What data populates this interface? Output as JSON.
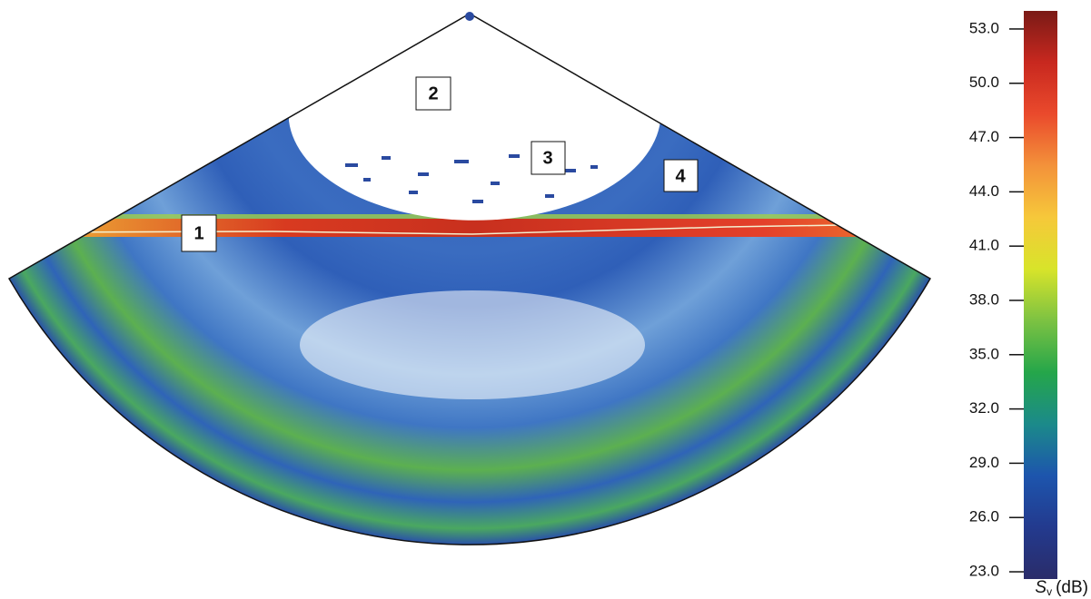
{
  "chart_data": {
    "type": "colorbar",
    "annotations": [
      "1",
      "2",
      "3",
      "4"
    ],
    "colorbar_label": {
      "symbol": "S",
      "subscript": "v",
      "unit": "(dB)"
    },
    "ylim": [
      22.6,
      54.0
    ],
    "yticks": [
      {
        "value": 23,
        "label": "23.0"
      },
      {
        "value": 26,
        "label": "26.0"
      },
      {
        "value": 29,
        "label": "29.0"
      },
      {
        "value": 32,
        "label": "32.0"
      },
      {
        "value": 35,
        "label": "35.0"
      },
      {
        "value": 38,
        "label": "38.0"
      },
      {
        "value": 41,
        "label": "41.0"
      },
      {
        "value": 44,
        "label": "44.0"
      },
      {
        "value": 47,
        "label": "47.0"
      },
      {
        "value": 50,
        "label": "50.0"
      },
      {
        "value": 53,
        "label": "53.0"
      }
    ],
    "colormap": [
      "#2a2c6a",
      "#233a8e",
      "#1d55ad",
      "#1b8a8a",
      "#25a64a",
      "#7cc242",
      "#d8e42a",
      "#f6c83a",
      "#f3923a",
      "#ea4a2c",
      "#c8281f",
      "#7a1a16"
    ]
  }
}
